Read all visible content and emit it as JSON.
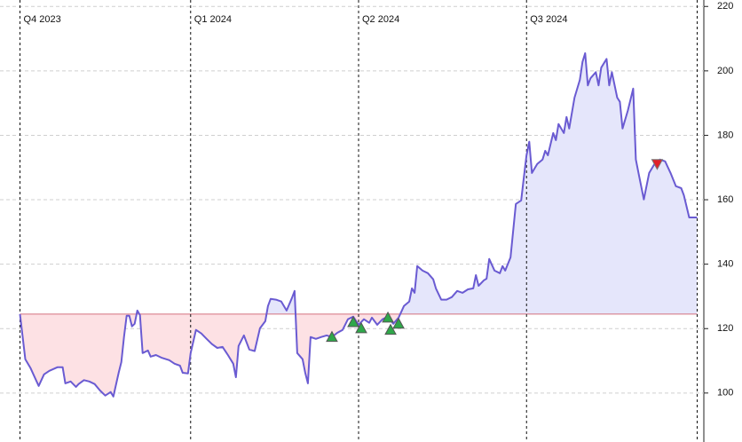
{
  "chart_data": {
    "type": "area-line",
    "x": [
      0,
      2,
      4,
      6,
      7,
      9,
      11,
      14,
      16,
      17,
      19,
      21,
      22,
      24,
      26,
      28,
      30,
      32,
      34,
      35,
      37,
      38,
      39,
      40,
      41,
      42,
      43,
      44,
      45,
      46,
      48,
      49,
      51,
      53,
      56,
      58,
      60,
      61,
      63,
      64,
      66,
      68,
      70,
      72,
      74,
      76,
      78,
      80,
      81,
      82,
      84,
      86,
      88,
      90,
      92,
      93,
      94,
      96,
      98,
      100,
      102,
      103,
      104,
      106,
      107,
      108,
      109,
      111,
      113,
      115,
      117,
      119,
      121,
      123,
      125,
      127,
      129,
      131,
      132,
      134,
      136,
      138,
      140,
      142,
      144,
      146,
      147,
      148,
      149,
      151,
      153,
      155,
      156,
      158,
      160,
      162,
      164,
      166,
      168,
      170,
      171,
      172,
      174,
      175,
      176,
      178,
      180,
      181,
      182,
      184,
      185,
      186,
      188,
      189,
      190,
      191,
      192,
      194,
      196,
      197,
      198,
      200,
      201,
      202,
      204,
      205,
      206,
      208,
      210,
      211,
      212,
      213,
      214,
      216,
      217,
      218,
      220,
      221,
      222,
      224,
      225,
      226,
      228,
      230,
      231,
      232,
      234,
      236,
      238,
      240,
      242,
      244,
      246,
      248,
      249,
      251,
      254
    ],
    "values": [
      124.5,
      110.5,
      107.7,
      104,
      102.2,
      105.8,
      106.9,
      108,
      108,
      103,
      103.6,
      101.9,
      102.8,
      104,
      103.6,
      102.8,
      100.8,
      99.2,
      100.3,
      98.9,
      106.3,
      109.6,
      117.4,
      124,
      124,
      120.7,
      121.5,
      125.6,
      124.2,
      112.4,
      113.2,
      111.3,
      111.8,
      111,
      110.2,
      109.1,
      108.5,
      106.3,
      106.1,
      112.4,
      119.6,
      118.5,
      116.8,
      115.2,
      114,
      114.3,
      111.8,
      109.1,
      104.9,
      114.6,
      117.9,
      113.5,
      113,
      120.1,
      122.3,
      127,
      129.2,
      129,
      128.4,
      125.6,
      129.5,
      131.7,
      112.4,
      110.5,
      106.3,
      103,
      117.4,
      116.8,
      117.4,
      117.9,
      117.4,
      118.7,
      119.6,
      122.9,
      123.7,
      121.2,
      122.9,
      121.8,
      123.4,
      121.2,
      122.9,
      123.7,
      121.5,
      123.4,
      127,
      128.4,
      132.5,
      131.1,
      139.4,
      138,
      137.2,
      135.3,
      132.5,
      129,
      129,
      129.8,
      131.7,
      131.1,
      132.2,
      132.5,
      136.6,
      133.3,
      135,
      135.5,
      141.6,
      138,
      137.2,
      139.4,
      138,
      142.1,
      150.4,
      158.7,
      159.8,
      166.9,
      173.8,
      178,
      168.3,
      171.1,
      172.5,
      175.2,
      173.8,
      180.7,
      178.5,
      183.5,
      180.7,
      185.7,
      182.1,
      191.7,
      197.2,
      202.8,
      205.5,
      195.5,
      197.7,
      199.6,
      195.5,
      201,
      203.7,
      195.5,
      199.6,
      191.7,
      190.4,
      182.1,
      187.7,
      194.5,
      172.5,
      168.3,
      160.1,
      168.3,
      171.1,
      172.5,
      171.9,
      168.3,
      164.2,
      163.6,
      161.4,
      154.5,
      154.5
    ],
    "color": "#6a5bd2",
    "baseline": 124.5,
    "baseline_color": "#d4707e",
    "fill_above": "#e5e6fb",
    "fill_below": "#fde1e4",
    "buy_signals": {
      "x": [
        117,
        125,
        128,
        138,
        139,
        142
      ],
      "values": [
        117.4,
        122,
        120.1,
        123.4,
        119.6,
        121.5
      ],
      "color": "#2fa84a"
    },
    "sell_signals": {
      "x": [
        239
      ],
      "values": [
        171.1
      ],
      "color": "#e0202a"
    },
    "xlim": [
      -7.5,
      256.5
    ],
    "xticks": [
      {
        "value": 0,
        "label": "Q4 2023"
      },
      {
        "value": 64,
        "label": "Q1 2024"
      },
      {
        "value": 127,
        "label": "Q2 2024"
      },
      {
        "value": 190,
        "label": "Q3 2024"
      }
    ],
    "end_marker": 254,
    "ylim": [
      84.8,
      222
    ],
    "yticks": [
      100,
      120,
      140,
      160,
      180,
      200,
      220
    ],
    "grid": true
  }
}
